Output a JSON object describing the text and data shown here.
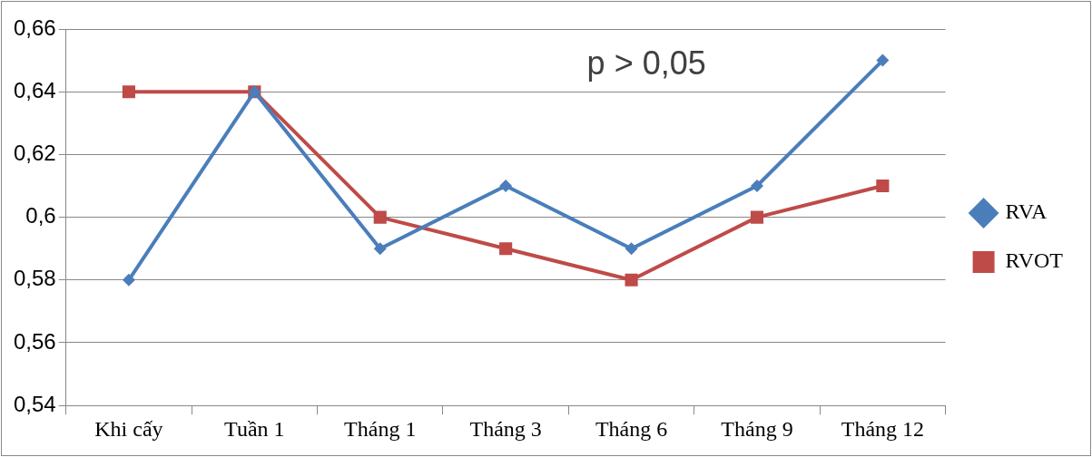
{
  "chart_data": {
    "type": "line",
    "categories": [
      "Khi cấy",
      "Tuần 1",
      "Tháng 1",
      "Tháng 3",
      "Tháng 6",
      "Tháng 9",
      "Tháng 12"
    ],
    "series": [
      {
        "name": "RVA",
        "color": "#4a7ebb",
        "marker": "diamond",
        "values": [
          0.58,
          0.64,
          0.59,
          0.61,
          0.59,
          0.61,
          0.65
        ]
      },
      {
        "name": "RVOT",
        "color": "#be4b48",
        "marker": "square",
        "values": [
          0.64,
          0.64,
          0.6,
          0.59,
          0.58,
          0.6,
          0.61
        ]
      }
    ],
    "ylim": [
      0.54,
      0.66
    ],
    "yticks": [
      {
        "value": 0.54,
        "label": "0,54"
      },
      {
        "value": 0.56,
        "label": "0,56"
      },
      {
        "value": 0.58,
        "label": "0,58"
      },
      {
        "value": 0.6,
        "label": "0,6"
      },
      {
        "value": 0.62,
        "label": "0,62"
      },
      {
        "value": 0.64,
        "label": "0,64"
      },
      {
        "value": 0.66,
        "label": "0,66"
      }
    ],
    "grid": "y",
    "legend": "right",
    "line_style": "solid",
    "annotations": [
      "p > 0,05"
    ]
  }
}
